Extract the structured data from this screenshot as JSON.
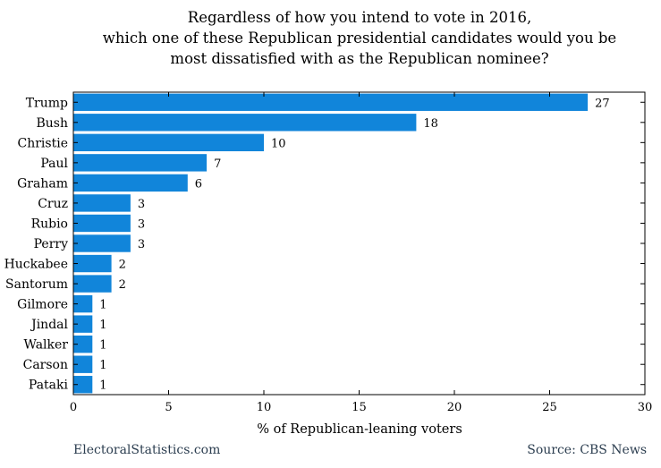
{
  "chart_data": {
    "type": "bar",
    "orientation": "horizontal",
    "title": [
      "Regardless of how you intend to vote in 2016,",
      "which one of these Republican presidential candidates would you be",
      "most dissatisfied with as the Republican nominee?"
    ],
    "categories": [
      "Trump",
      "Bush",
      "Christie",
      "Paul",
      "Graham",
      "Cruz",
      "Rubio",
      "Perry",
      "Huckabee",
      "Santorum",
      "Gilmore",
      "Jindal",
      "Walker",
      "Carson",
      "Pataki"
    ],
    "values": [
      27,
      18,
      10,
      7,
      6,
      3,
      3,
      3,
      2,
      2,
      1,
      1,
      1,
      1,
      1
    ],
    "xlabel": "% of Republican-leaning voters",
    "ylabel": "",
    "xlim": [
      0,
      30
    ],
    "xticks": [
      0,
      5,
      10,
      15,
      20,
      25,
      30
    ],
    "grid": false,
    "bar_color": "#1185da",
    "data_labels": true
  },
  "footer": {
    "left": "ElectoralStatistics.com",
    "right": "Source: CBS News"
  }
}
